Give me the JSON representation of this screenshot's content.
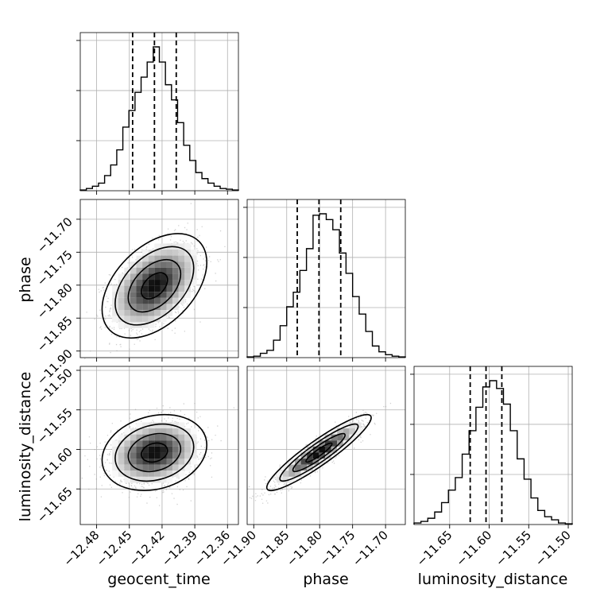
{
  "chart_data": {
    "type": "corner",
    "parameters": [
      "geocent_time",
      "phase",
      "luminosity_distance"
    ],
    "tick_labels": {
      "geocent_time": [
        "−12.48",
        "−12.45",
        "−12.42",
        "−12.39",
        "−12.36"
      ],
      "phase_x": [
        "−11.90",
        "−11.85",
        "−11.80",
        "−11.75",
        "−11.70"
      ],
      "phase_y": [
        "−11.70",
        "−11.75",
        "−11.80",
        "−11.85",
        "−11.90"
      ],
      "luminosity_distance_x": [
        "−11.65",
        "−11.60",
        "−11.55",
        "−11.50"
      ],
      "luminosity_distance_y": [
        "−11.50",
        "−11.55",
        "−11.60",
        "−11.65"
      ]
    },
    "ranges": {
      "geocent_time": [
        -12.495,
        -12.35
      ],
      "phase": [
        -11.91,
        -11.67
      ],
      "luminosity_distance": [
        -11.695,
        -11.495
      ]
    },
    "quantiles": {
      "geocent_time": [
        -12.447,
        -12.427,
        -12.407
      ],
      "phase": [
        -11.834,
        -11.801,
        -11.768
      ],
      "luminosity_distance": [
        -11.624,
        -11.604,
        -11.584
      ]
    },
    "histograms": {
      "geocent_time": [
        0.5,
        1.5,
        3,
        5,
        10,
        17,
        27,
        42,
        53,
        65,
        75,
        85,
        95,
        85,
        70,
        60,
        45,
        30,
        20,
        12,
        8,
        5,
        3,
        1.5,
        1,
        0.5
      ],
      "phase": [
        0.5,
        1,
        3,
        5,
        12,
        22,
        35,
        45,
        60,
        75,
        98,
        99,
        95,
        88,
        72,
        58,
        42,
        30,
        18,
        8,
        4,
        2,
        1,
        0.5
      ],
      "luminosity_distance": [
        1,
        2,
        4,
        8,
        14,
        22,
        30,
        45,
        60,
        75,
        88,
        92,
        87,
        77,
        60,
        42,
        29,
        17,
        9,
        5,
        3,
        1,
        0.5
      ]
    },
    "correlations": {
      "phase_vs_geocent_time": 0.45,
      "luminosity_distance_vs_geocent_time": 0.2,
      "luminosity_distance_vs_phase": 0.92
    },
    "grid": true
  }
}
